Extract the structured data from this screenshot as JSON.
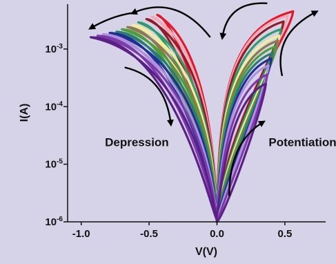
{
  "chart_data": {
    "type": "line",
    "xlabel": "V(V)",
    "ylabel": "I(A)",
    "xlim": [
      -1.1,
      0.8
    ],
    "ylim": [
      1e-06,
      0.006
    ],
    "yscale": "log",
    "grid": false,
    "x_ticks": [
      {
        "value": -1.0,
        "label": "-1.0"
      },
      {
        "value": -0.5,
        "label": "-0.5"
      },
      {
        "value": 0.0,
        "label": "0.0"
      },
      {
        "value": 0.5,
        "label": "0.5"
      }
    ],
    "y_ticks": [
      {
        "value": 0.001,
        "base": "10",
        "exp": "-3"
      },
      {
        "value": 0.0001,
        "base": "10",
        "exp": "-4"
      },
      {
        "value": 1e-05,
        "base": "10",
        "exp": "-5"
      },
      {
        "value": 1e-06,
        "base": "10",
        "exp": "-6"
      }
    ],
    "annotations": [
      {
        "text": "Depression",
        "x": -0.59,
        "y": 2.05e-05
      },
      {
        "text": "Potentiation",
        "x": 0.63,
        "y": 2.05e-05
      }
    ],
    "arrows": [
      {
        "id": "depression-top",
        "from": [
          -0.05,
          0.0016
        ],
        "ctrl": [
          -0.3,
          0.009
        ],
        "to": [
          -0.62,
          0.0042
        ]
      },
      {
        "id": "depression-top-left",
        "from": [
          -0.63,
          0.0042
        ],
        "ctrl": [
          -0.78,
          0.0037
        ],
        "to": [
          -0.93,
          0.0023
        ]
      },
      {
        "id": "depression-side",
        "from": [
          -0.68,
          0.00048
        ],
        "ctrl": [
          -0.38,
          0.00033
        ],
        "to": [
          -0.34,
          5e-05
        ]
      },
      {
        "id": "potentiation-bottom",
        "from": [
          0.09,
          2.8e-06
        ],
        "ctrl": [
          0.09,
          2.4e-05
        ],
        "to": [
          0.34,
          5.4e-05
        ]
      },
      {
        "id": "potentiation-side",
        "from": [
          0.48,
          0.00034
        ],
        "ctrl": [
          0.41,
          0.0018
        ],
        "to": [
          0.73,
          0.0044
        ]
      },
      {
        "id": "potentiation-top",
        "from": [
          0.37,
          0.0062
        ],
        "ctrl": [
          0.08,
          0.0068
        ],
        "to": [
          0.04,
          0.0016
        ]
      }
    ],
    "series": [
      {
        "color": "#e3172b",
        "neg_x": -0.44,
        "neg_y": 0.0039,
        "pos_x": 0.56,
        "pos_y": 0.0045,
        "min_y": 0.0001
      },
      {
        "color": "#f4a7b3",
        "neg_x": -0.48,
        "neg_y": 0.0036,
        "pos_x": 0.52,
        "pos_y": 0.0038,
        "min_y": 8e-05
      },
      {
        "color": "#8d1d28",
        "neg_x": -0.52,
        "neg_y": 0.0033,
        "pos_x": 0.49,
        "pos_y": 0.003,
        "min_y": 6e-05
      },
      {
        "color": "#2f9a6a",
        "neg_x": -0.58,
        "neg_y": 0.0029,
        "pos_x": 0.47,
        "pos_y": 0.0022,
        "min_y": 4e-05
      },
      {
        "color": "#f2ee9c",
        "neg_x": -0.62,
        "neg_y": 0.0026,
        "pos_x": 0.46,
        "pos_y": 0.0017,
        "min_y": 3e-05
      },
      {
        "color": "#8a7a4e",
        "neg_x": -0.66,
        "neg_y": 0.0024,
        "pos_x": 0.45,
        "pos_y": 0.0014,
        "min_y": 2.2e-05
      },
      {
        "color": "#4f9c3a",
        "neg_x": -0.7,
        "neg_y": 0.0022,
        "pos_x": 0.43,
        "pos_y": 0.0011,
        "min_y": 1.6e-05
      },
      {
        "color": "#2a7d70",
        "neg_x": -0.74,
        "neg_y": 0.002,
        "pos_x": 0.41,
        "pos_y": 0.00085,
        "min_y": 1.2e-05
      },
      {
        "color": "#1f2f93",
        "neg_x": -0.79,
        "neg_y": 0.0019,
        "pos_x": 0.4,
        "pos_y": 0.00068,
        "min_y": 8e-06
      },
      {
        "color": "#b08fdc",
        "neg_x": -0.84,
        "neg_y": 0.0018,
        "pos_x": 0.38,
        "pos_y": 0.00052,
        "min_y": 5.5e-06
      },
      {
        "color": "#7a3cab",
        "neg_x": -0.88,
        "neg_y": 0.0017,
        "pos_x": 0.37,
        "pos_y": 0.00036,
        "min_y": 3.5e-06
      },
      {
        "color": "#5b1f86",
        "neg_x": -0.93,
        "neg_y": 0.0016,
        "pos_x": 0.36,
        "pos_y": 0.00025,
        "min_y": 1.8e-06
      }
    ]
  }
}
